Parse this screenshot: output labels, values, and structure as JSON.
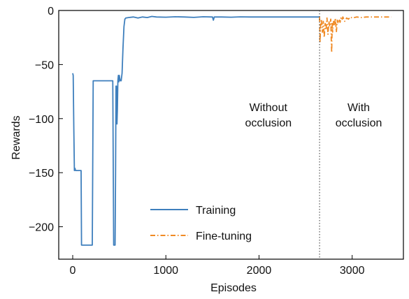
{
  "chart_data": {
    "type": "line",
    "title": "",
    "xlabel": "Episodes",
    "ylabel": "Rewards",
    "xlim": [
      -150,
      3550
    ],
    "ylim": [
      -230,
      0
    ],
    "xticks": [
      0,
      1000,
      2000,
      3000
    ],
    "yticks": [
      0,
      -50,
      -100,
      -150,
      -200
    ],
    "xtick_labels": [
      "0",
      "1000",
      "2000",
      "3000"
    ],
    "ytick_labels": [
      "0",
      "−50",
      "−100",
      "−150",
      "−200"
    ],
    "grid": false,
    "legend_position": "lower-left",
    "series": [
      {
        "name": "Training",
        "color": "#3e7fbd",
        "style": "solid",
        "points": [
          [
            0,
            -58
          ],
          [
            5,
            -60
          ],
          [
            12,
            -110
          ],
          [
            18,
            -148
          ],
          [
            25,
            -146
          ],
          [
            30,
            -148
          ],
          [
            55,
            -148
          ],
          [
            80,
            -148
          ],
          [
            90,
            -148
          ],
          [
            95,
            -217
          ],
          [
            110,
            -217
          ],
          [
            150,
            -217
          ],
          [
            190,
            -217
          ],
          [
            210,
            -217
          ],
          [
            220,
            -65
          ],
          [
            260,
            -65
          ],
          [
            300,
            -65
          ],
          [
            350,
            -65
          ],
          [
            400,
            -65
          ],
          [
            430,
            -65
          ],
          [
            440,
            -217
          ],
          [
            455,
            -217
          ],
          [
            460,
            -150
          ],
          [
            465,
            -70
          ],
          [
            470,
            -70
          ],
          [
            475,
            -105
          ],
          [
            480,
            -92
          ],
          [
            485,
            -65
          ],
          [
            490,
            -60
          ],
          [
            495,
            -66
          ],
          [
            500,
            -60
          ],
          [
            510,
            -65
          ],
          [
            520,
            -65
          ],
          [
            530,
            -58
          ],
          [
            540,
            -35
          ],
          [
            550,
            -15
          ],
          [
            560,
            -8
          ],
          [
            570,
            -7
          ],
          [
            600,
            -6.5
          ],
          [
            650,
            -6
          ],
          [
            700,
            -7
          ],
          [
            750,
            -6
          ],
          [
            800,
            -6.5
          ],
          [
            850,
            -5.5
          ],
          [
            900,
            -6
          ],
          [
            1000,
            -6.2
          ],
          [
            1100,
            -5.8
          ],
          [
            1200,
            -6
          ],
          [
            1300,
            -6.4
          ],
          [
            1400,
            -5.8
          ],
          [
            1500,
            -6
          ],
          [
            1510,
            -9
          ],
          [
            1520,
            -6
          ],
          [
            1600,
            -6
          ],
          [
            1700,
            -6.2
          ],
          [
            1800,
            -5.9
          ],
          [
            1900,
            -6
          ],
          [
            2000,
            -6
          ],
          [
            2100,
            -6
          ],
          [
            2200,
            -6
          ],
          [
            2300,
            -6
          ],
          [
            2400,
            -6
          ],
          [
            2500,
            -6
          ],
          [
            2600,
            -6
          ],
          [
            2650,
            -6
          ]
        ]
      },
      {
        "name": "Fine-tuning",
        "color": "#f08a24",
        "style": "dashdot",
        "points": [
          [
            2650,
            -6
          ],
          [
            2655,
            -30
          ],
          [
            2660,
            -15
          ],
          [
            2670,
            -8
          ],
          [
            2680,
            -20
          ],
          [
            2690,
            -10
          ],
          [
            2700,
            -25
          ],
          [
            2710,
            -12
          ],
          [
            2720,
            -18
          ],
          [
            2730,
            -7
          ],
          [
            2740,
            -22
          ],
          [
            2750,
            -10
          ],
          [
            2760,
            -15
          ],
          [
            2770,
            -8
          ],
          [
            2775,
            -24
          ],
          [
            2780,
            -39
          ],
          [
            2785,
            -12
          ],
          [
            2790,
            -20
          ],
          [
            2800,
            -10
          ],
          [
            2810,
            -14
          ],
          [
            2820,
            -7
          ],
          [
            2830,
            -20
          ],
          [
            2840,
            -9
          ],
          [
            2850,
            -12
          ],
          [
            2860,
            -8
          ],
          [
            2870,
            -11
          ],
          [
            2880,
            -7
          ],
          [
            2890,
            -9
          ],
          [
            2900,
            -6
          ],
          [
            2920,
            -10
          ],
          [
            2940,
            -7
          ],
          [
            2960,
            -8
          ],
          [
            2980,
            -6
          ],
          [
            3000,
            -7
          ],
          [
            3050,
            -6
          ],
          [
            3100,
            -6.5
          ],
          [
            3150,
            -6
          ],
          [
            3200,
            -6
          ],
          [
            3250,
            -6
          ],
          [
            3300,
            -6
          ],
          [
            3350,
            -6
          ],
          [
            3420,
            -6
          ]
        ]
      }
    ],
    "vline": {
      "x": 2650,
      "style": "dotted",
      "color": "#333333"
    },
    "annotations": [
      {
        "lines": [
          "Without",
          "occlusion"
        ],
        "x": 2100,
        "y": -97
      },
      {
        "lines": [
          "With",
          "occlusion"
        ],
        "x": 3070,
        "y": -97
      }
    ]
  }
}
